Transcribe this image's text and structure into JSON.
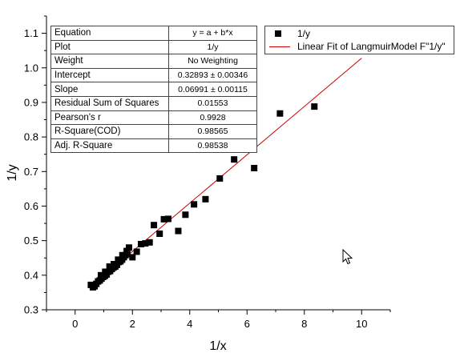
{
  "chart_data": {
    "type": "scatter",
    "xlabel": "1/x",
    "ylabel": "1/y",
    "xlim": [
      -1,
      11
    ],
    "ylim": [
      0.3,
      1.15
    ],
    "xticks": [
      0,
      2,
      4,
      6,
      8,
      10
    ],
    "yticks": [
      0.3,
      0.4,
      0.5,
      0.6,
      0.7,
      0.8,
      0.9,
      1.0,
      1.1
    ],
    "grid": false,
    "legend_position": "top-right",
    "series": [
      {
        "name": "1/y",
        "marker": "square",
        "color": "#000000",
        "x": [
          0.55,
          0.62,
          0.68,
          0.74,
          0.8,
          0.86,
          0.92,
          0.98,
          1.04,
          1.1,
          1.16,
          1.22,
          1.28,
          1.34,
          1.4,
          1.46,
          1.52,
          1.58,
          1.64,
          1.7,
          1.76,
          1.82,
          1.88,
          0.9,
          1.05,
          1.2,
          1.35,
          1.5,
          1.65,
          1.8,
          2.0,
          2.15,
          2.3,
          2.45,
          2.6,
          2.75,
          2.95,
          3.1,
          3.25,
          3.6,
          3.85,
          4.15,
          4.55,
          5.05,
          5.55,
          6.25,
          7.15,
          8.35,
          10.0
        ],
        "y": [
          0.372,
          0.365,
          0.368,
          0.375,
          0.382,
          0.385,
          0.39,
          0.395,
          0.398,
          0.402,
          0.41,
          0.412,
          0.418,
          0.422,
          0.425,
          0.43,
          0.438,
          0.44,
          0.445,
          0.452,
          0.458,
          0.462,
          0.48,
          0.4,
          0.41,
          0.425,
          0.432,
          0.445,
          0.458,
          0.47,
          0.452,
          0.468,
          0.49,
          0.492,
          0.495,
          0.545,
          0.52,
          0.562,
          0.563,
          0.528,
          0.575,
          0.605,
          0.62,
          0.68,
          0.735,
          0.71,
          0.868,
          0.888,
          1.062
        ]
      },
      {
        "name": "Linear Fit of LangmuirModel F\"1/y\"",
        "type": "line",
        "color": "#cc0000",
        "intercept": 0.32893,
        "slope": 0.06991,
        "x_range": [
          0.5,
          10.0
        ]
      }
    ]
  },
  "stats_table": [
    {
      "key": "Equation",
      "value": "y = a + b*x"
    },
    {
      "key": "Plot",
      "value": "1/y"
    },
    {
      "key": "Weight",
      "value": "No Weighting"
    },
    {
      "key": "Intercept",
      "value": "0.32893 ± 0.00346"
    },
    {
      "key": "Slope",
      "value": "0.06991 ± 0.00115"
    },
    {
      "key": "Residual Sum of Squares",
      "value": "0.01553"
    },
    {
      "key": "Pearson's r",
      "value": "0.9928"
    },
    {
      "key": "R-Square(COD)",
      "value": "0.98565"
    },
    {
      "key": "Adj. R-Square",
      "value": "0.98538"
    }
  ],
  "cursor": "arrow-cursor-icon"
}
